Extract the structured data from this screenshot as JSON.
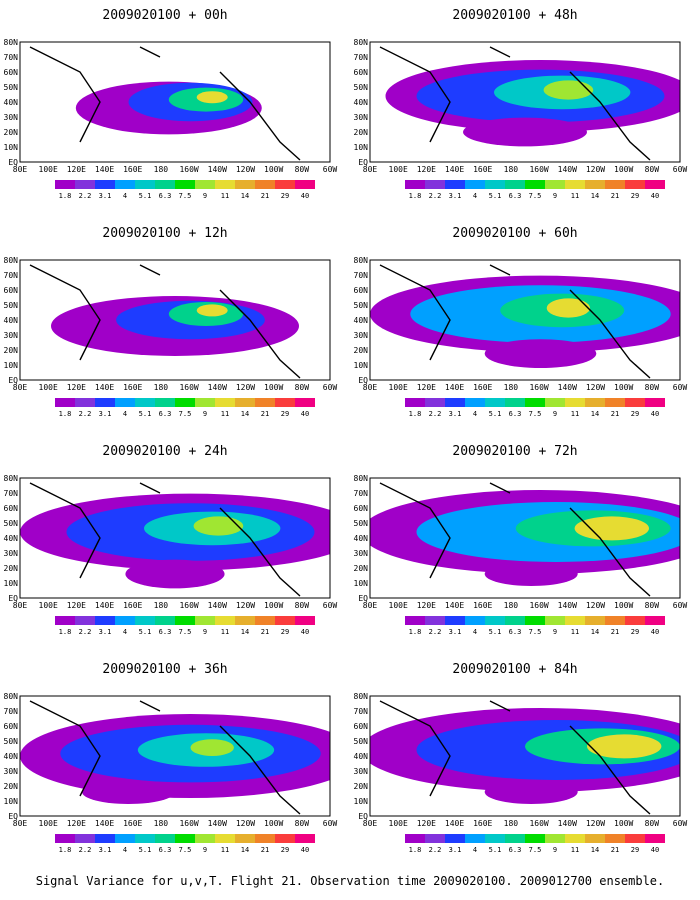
{
  "caption": "Signal Variance for u,v,T. Flight 21. Observation time 2009020100. 2009012700 ensemble.",
  "colorbar": {
    "labels": [
      "1.8",
      "2.2",
      "3.1",
      "4",
      "5.1",
      "6.3",
      "7.5",
      "9",
      "11",
      "14",
      "21",
      "29",
      "40"
    ],
    "colors": [
      "#a000c8",
      "#8232dc",
      "#1e3cff",
      "#00a0ff",
      "#00c8c8",
      "#00d28c",
      "#00dc00",
      "#a0e632",
      "#e6dc32",
      "#e6af2d",
      "#f08228",
      "#fa3c3c",
      "#f00082"
    ]
  },
  "lat_labels": [
    "80N",
    "70N",
    "60N",
    "50N",
    "40N",
    "30N",
    "20N",
    "10N",
    "EQ"
  ],
  "lon_labels": [
    "80E",
    "100E",
    "120E",
    "140E",
    "160E",
    "180",
    "160W",
    "140W",
    "120W",
    "100W",
    "80W",
    "60W"
  ],
  "panels": [
    {
      "title": "2009020100 + 00h"
    },
    {
      "title": "2009020100 + 48h"
    },
    {
      "title": "2009020100 + 12h"
    },
    {
      "title": "2009020100 + 60h"
    },
    {
      "title": "2009020100 + 24h"
    },
    {
      "title": "2009020100 + 72h"
    },
    {
      "title": "2009020100 + 36h"
    },
    {
      "title": "2009020100 + 84h"
    }
  ]
}
